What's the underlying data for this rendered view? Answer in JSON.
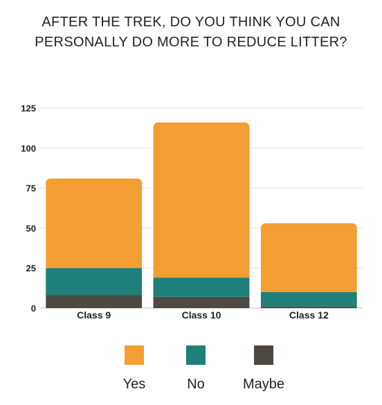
{
  "chart_data": {
    "type": "bar",
    "stacked": true,
    "title": "AFTER THE TREK, DO YOU THINK YOU CAN\nPERSONALLY DO MORE TO REDUCE LITTER?",
    "categories": [
      "Class 9",
      "Class 10",
      "Class 12"
    ],
    "series": [
      {
        "name": "Maybe",
        "color": "#4d4840",
        "values": [
          8,
          7,
          1
        ]
      },
      {
        "name": "No",
        "color": "#1e8079",
        "values": [
          17,
          12,
          9
        ]
      },
      {
        "name": "Yes",
        "color": "#f29e33",
        "values": [
          56,
          97,
          43
        ]
      }
    ],
    "legend_order": [
      "Yes",
      "No",
      "Maybe"
    ],
    "yticks": [
      0,
      25,
      50,
      75,
      100,
      125
    ],
    "ylim": [
      0,
      125
    ],
    "grid": true,
    "legend_position": "bottom"
  }
}
